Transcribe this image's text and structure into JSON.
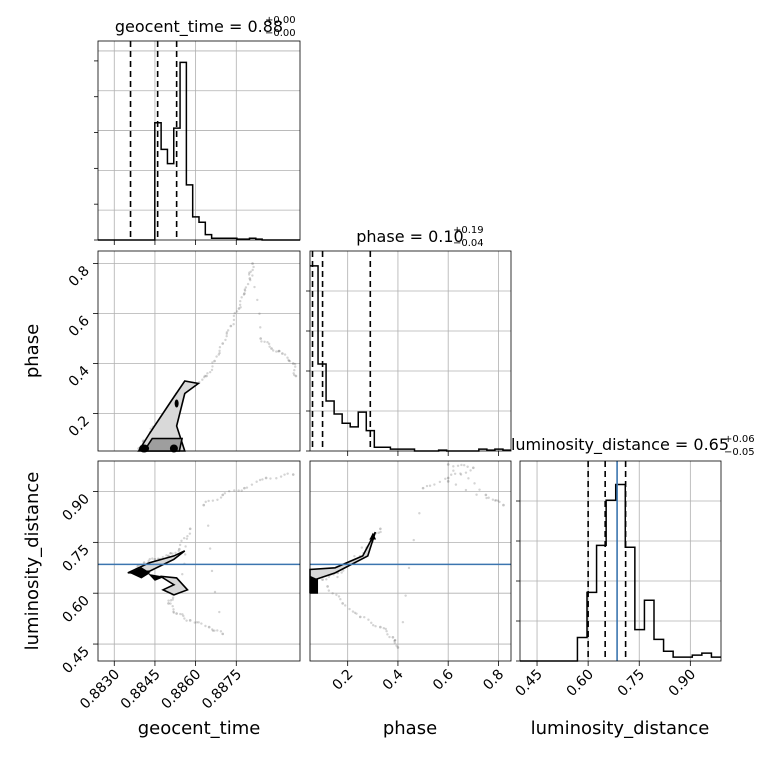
{
  "chart_data": {
    "type": "corner",
    "parameters": [
      "geocent_time",
      "phase",
      "luminosity_distance"
    ],
    "truth": {
      "luminosity_distance": 0.685
    },
    "truth_color": "#3b75af",
    "grid": true,
    "marginals": [
      {
        "parameter": "geocent_time",
        "title": {
          "base": "geocent_time = 0.88",
          "sup": "+0.00",
          "sub": "−0.00"
        },
        "range": [
          0.8824,
          0.88985
        ],
        "bins": [
          0.8824,
          0.88263,
          0.88286,
          0.88309,
          0.88332,
          0.88355,
          0.88378,
          0.884,
          0.88423,
          0.88446,
          0.88469,
          0.88492,
          0.88515,
          0.88537,
          0.8856,
          0.88583,
          0.88606,
          0.88629,
          0.88652,
          0.88674,
          0.88697,
          0.8872,
          0.88743,
          0.88766,
          0.88789,
          0.88812,
          0.88834,
          0.88857,
          0.8888,
          0.88903,
          0.88926,
          0.88949,
          0.88972
        ],
        "counts": [
          0,
          0,
          0,
          0,
          0,
          0,
          0,
          0,
          0,
          0.66,
          0.51,
          0.43,
          0.63,
          1.0,
          0.31,
          0.13,
          0.1,
          0.03,
          0.01,
          0.01,
          0.01,
          0.01,
          0.005,
          0.005,
          0.01,
          0.005,
          0,
          0,
          0,
          0,
          0,
          0
        ],
        "quantiles": [
          0.8836,
          0.8846,
          0.8853
        ],
        "xticks": [],
        "ymax": 1.12
      },
      {
        "parameter": "phase",
        "title": {
          "base": "phase = 0.10",
          "sup": "+0.19",
          "sub": "−0.04"
        },
        "range": [
          0.05,
          0.85
        ],
        "counts": [
          1.0,
          0.47,
          0.27,
          0.2,
          0.15,
          0.13,
          0.21,
          0.11,
          0.02,
          0.02,
          0.01,
          0.01,
          0.01,
          0,
          0,
          0,
          0.005,
          0,
          0,
          0,
          0,
          0.01,
          0.005,
          0.01,
          0.005
        ],
        "quantiles": [
          0.06,
          0.1,
          0.29
        ],
        "xticks": [],
        "ymax": 1.08
      },
      {
        "parameter": "luminosity_distance",
        "title": {
          "base": "luminosity_distance = 0.65",
          "sup": "+0.06",
          "sub": "−0.05"
        },
        "range": [
          0.4,
          0.99
        ],
        "counts": [
          0,
          0,
          0,
          0,
          0,
          0,
          0.12,
          0.35,
          0.59,
          0.82,
          0.9,
          0.58,
          0.16,
          0.31,
          0.11,
          0.05,
          0.02,
          0.02,
          0.03,
          0.04,
          0.02
        ],
        "quantiles": [
          0.6,
          0.65,
          0.71
        ],
        "xticks": [
          0.45,
          0.6,
          0.75,
          0.9
        ],
        "ymax": 1.02
      }
    ],
    "axes": {
      "geocent_time": {
        "range": [
          0.8824,
          0.88985
        ],
        "ticks": [
          0.883,
          0.8845,
          0.886,
          0.8875
        ],
        "tick_labels": [
          "0.8830",
          "0.8845",
          "0.8860",
          "0.8875"
        ],
        "label": "geocent_time"
      },
      "phase": {
        "range": [
          0.05,
          0.85
        ],
        "ticks": [
          0.2,
          0.4,
          0.6,
          0.8
        ],
        "tick_labels": [
          "0.2",
          "0.4",
          "0.6",
          "0.8"
        ],
        "label": "phase"
      },
      "luminosity_distance": {
        "range": [
          0.4,
          0.99
        ],
        "ticks": [
          0.45,
          0.6,
          0.75,
          0.9
        ],
        "tick_labels": [
          "0.45",
          "0.60",
          "0.75",
          "0.90"
        ],
        "label": "luminosity_distance"
      }
    },
    "samples": {
      "geocent_time_vs_phase": [
        [
          0.8839,
          0.06
        ],
        [
          0.8842,
          0.1
        ],
        [
          0.8845,
          0.15
        ],
        [
          0.8849,
          0.2
        ],
        [
          0.8852,
          0.26
        ],
        [
          0.8856,
          0.3
        ],
        [
          0.886,
          0.32
        ],
        [
          0.8864,
          0.35
        ],
        [
          0.8867,
          0.41
        ],
        [
          0.887,
          0.48
        ],
        [
          0.8873,
          0.55
        ],
        [
          0.8876,
          0.62
        ],
        [
          0.8878,
          0.68
        ],
        [
          0.888,
          0.74
        ],
        [
          0.8881,
          0.8
        ],
        [
          0.8884,
          0.5
        ],
        [
          0.8888,
          0.46
        ],
        [
          0.8892,
          0.44
        ],
        [
          0.8896,
          0.4
        ],
        [
          0.8897,
          0.35
        ]
      ],
      "geocent_time_vs_luminosity_distance": [
        [
          0.8836,
          0.66
        ],
        [
          0.8841,
          0.69
        ],
        [
          0.8845,
          0.7
        ],
        [
          0.885,
          0.71
        ],
        [
          0.8854,
          0.73
        ],
        [
          0.8858,
          0.79
        ],
        [
          0.8854,
          0.63
        ],
        [
          0.8852,
          0.6
        ],
        [
          0.885,
          0.57
        ],
        [
          0.8853,
          0.54
        ],
        [
          0.8858,
          0.52
        ],
        [
          0.8865,
          0.5
        ],
        [
          0.887,
          0.48
        ],
        [
          0.8863,
          0.86
        ],
        [
          0.887,
          0.89
        ],
        [
          0.8878,
          0.91
        ],
        [
          0.8886,
          0.94
        ],
        [
          0.8896,
          0.95
        ]
      ],
      "phase_vs_luminosity_distance": [
        [
          0.1,
          0.64
        ],
        [
          0.16,
          0.66
        ],
        [
          0.22,
          0.69
        ],
        [
          0.27,
          0.72
        ],
        [
          0.3,
          0.76
        ],
        [
          0.33,
          0.79
        ],
        [
          0.12,
          0.62
        ],
        [
          0.18,
          0.57
        ],
        [
          0.25,
          0.53
        ],
        [
          0.33,
          0.5
        ],
        [
          0.38,
          0.47
        ],
        [
          0.4,
          0.44
        ],
        [
          0.5,
          0.91
        ],
        [
          0.6,
          0.94
        ],
        [
          0.7,
          0.97
        ],
        [
          0.6,
          0.98
        ],
        [
          0.75,
          0.89
        ],
        [
          0.82,
          0.86
        ],
        [
          0.6,
          0.93
        ]
      ]
    }
  }
}
